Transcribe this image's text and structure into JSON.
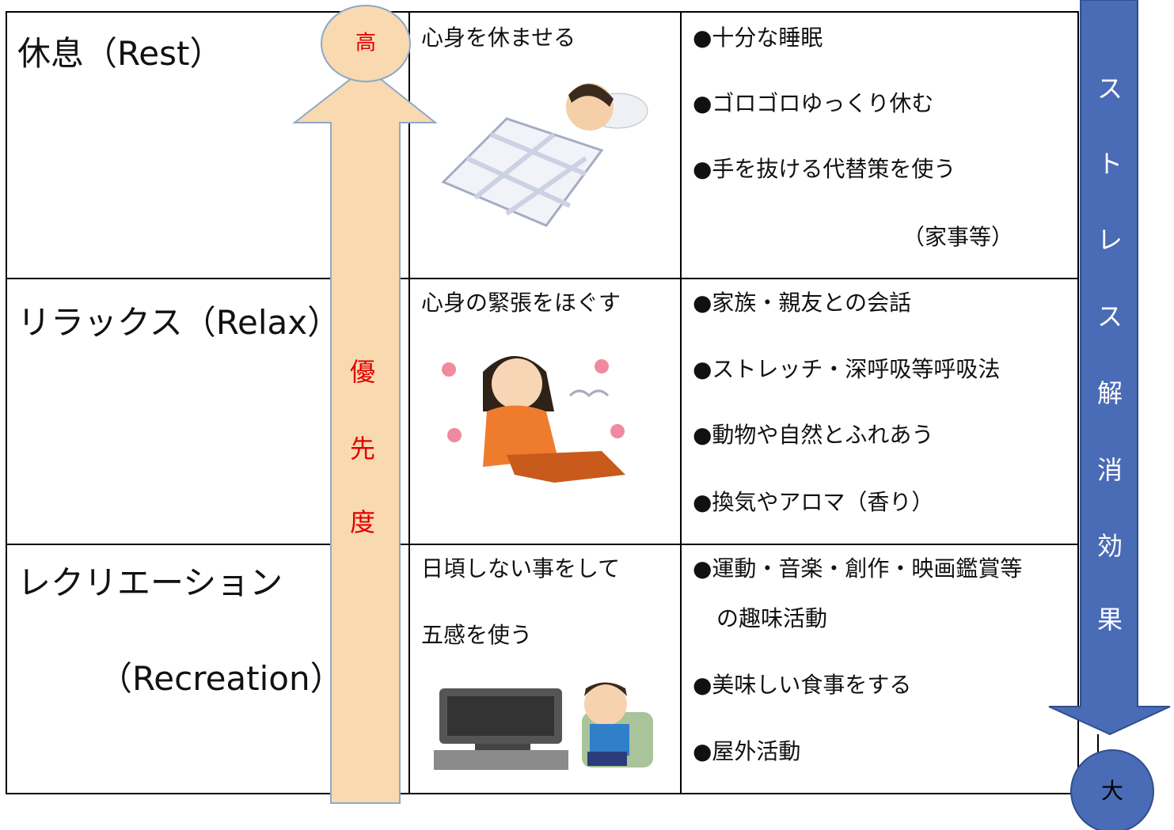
{
  "left_arrow": {
    "top_label": "高",
    "label_chars": [
      "優",
      "先",
      "度"
    ]
  },
  "right_arrow": {
    "label_chars": [
      "ス",
      "ト",
      "レ",
      "ス",
      "解",
      "消",
      "効",
      "果"
    ],
    "bottom_label": "大"
  },
  "table": {
    "rows": [
      {
        "category": [
          "休息（Rest）"
        ],
        "description": [
          "心身を休ませる"
        ],
        "items": [
          "●十分な睡眠",
          "●ゴロゴロゆっくり休む",
          "●手を抜ける代替策を使う",
          "（家事等）"
        ]
      },
      {
        "category": [
          "リラックス（Relax）"
        ],
        "description": [
          "心身の緊張をほぐす"
        ],
        "items": [
          "●家族・親友との会話",
          "●ストレッチ・深呼吸等呼吸法",
          "●動物や自然とふれあう",
          "●換気やアロマ（香り）"
        ]
      },
      {
        "category": [
          "レクリエーション",
          "（Recreation）"
        ],
        "description": [
          "日頃しない事をして",
          "五感を使う"
        ],
        "items": [
          "●運動・音楽・創作・映画鑑賞等",
          "の趣味活動",
          "●美味しい食事をする",
          "●屋外活動"
        ]
      }
    ]
  }
}
